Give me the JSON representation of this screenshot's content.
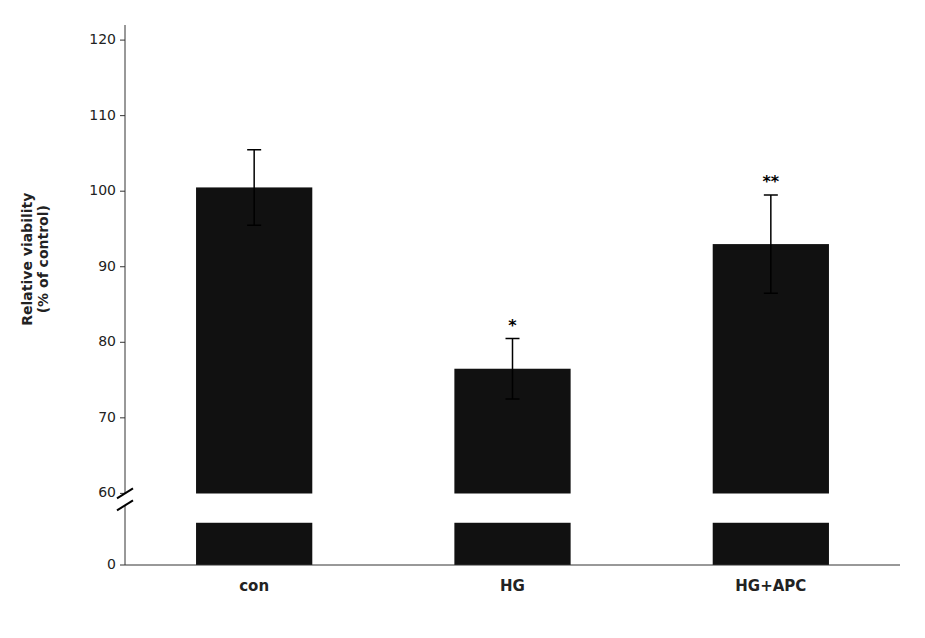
{
  "chart_data": [
    {
      "type": "bar",
      "ylabel": "Relative viability\n(% of control)",
      "categories": [
        "con",
        "HG",
        "HG+APC"
      ],
      "values": [
        100.5,
        76.5,
        93.0
      ],
      "errors": [
        5.0,
        4.0,
        6.5
      ],
      "annotations": [
        null,
        "*",
        "**"
      ],
      "color": "#111111",
      "ylim": [
        60,
        122
      ],
      "yticks": [
        60,
        70,
        80,
        90,
        100,
        110,
        120
      ],
      "tick_labels": "y",
      "grid": false
    },
    {
      "type": "bar",
      "categories": [
        "con",
        "HG",
        "HG+APC"
      ],
      "values": [
        8.5,
        8.5,
        8.5
      ],
      "color": "#111111",
      "ylim": [
        0,
        12
      ],
      "yticks": [
        0
      ],
      "grid": false
    }
  ]
}
